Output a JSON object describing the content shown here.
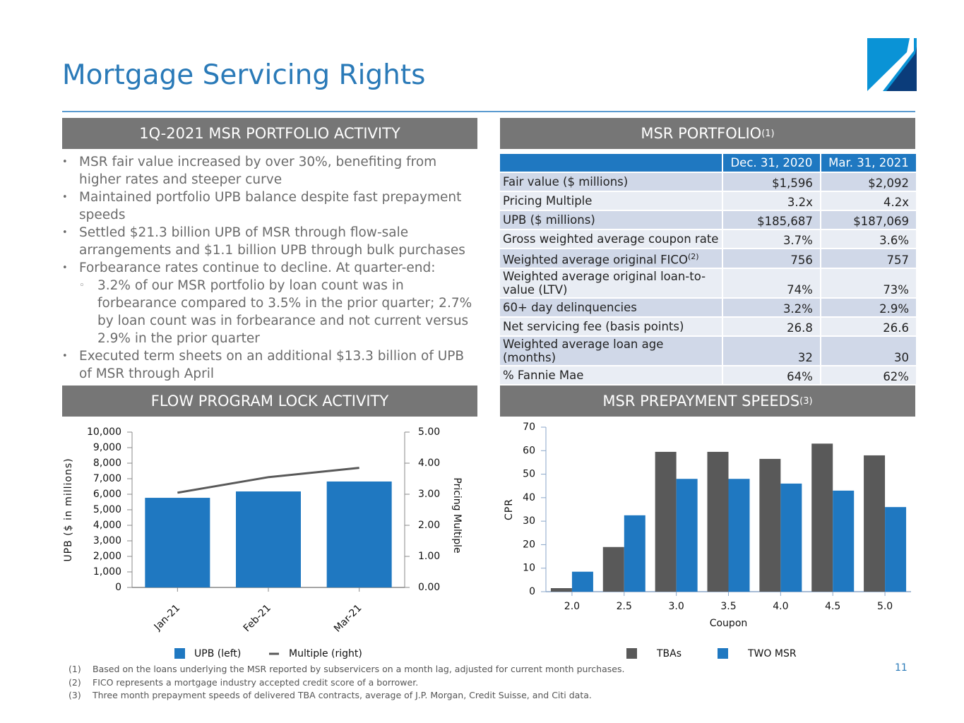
{
  "title": "Mortgage Servicing Rights",
  "page_number": "11",
  "activity": {
    "heading": "1Q-2021 MSR PORTFOLIO ACTIVITY",
    "bullets": [
      {
        "text": "MSR fair value increased by over 30%, benefiting from higher rates and steeper curve"
      },
      {
        "text": "Maintained portfolio UPB balance despite fast prepayment speeds"
      },
      {
        "text": "Settled $21.3 billion UPB of MSR through flow-sale arrangements and $1.1 billion UPB through bulk purchases"
      },
      {
        "text": "Forbearance rates continue to decline. At quarter-end:",
        "sub": [
          "3.2% of our MSR portfolio by loan count was in forbearance compared to 3.5% in the prior quarter; 2.7% by loan count was in forbearance and not current versus 2.9% in the prior quarter"
        ]
      },
      {
        "text": "Executed term sheets on an additional $13.3 billion of UPB of MSR through April"
      }
    ]
  },
  "portfolio": {
    "heading": "MSR PORTFOLIO",
    "heading_note": "(1)",
    "columns": [
      "Dec. 31, 2020",
      "Mar. 31, 2021"
    ],
    "rows": [
      {
        "label": "Fair value ($ millions)",
        "values": [
          "$1,596",
          "$2,092"
        ]
      },
      {
        "label": "Pricing Multiple",
        "values": [
          "3.2x",
          "4.2x"
        ]
      },
      {
        "label": "UPB ($ millions)",
        "values": [
          "$185,687",
          "$187,069"
        ]
      },
      {
        "label": "Gross weighted average coupon rate",
        "values": [
          "3.7%",
          "3.6%"
        ]
      },
      {
        "label": "Weighted average original FICO",
        "note": "(2)",
        "values": [
          "756",
          "757"
        ]
      },
      {
        "label": "Weighted average original loan-to-value (LTV)",
        "values": [
          "74%",
          "73%"
        ]
      },
      {
        "label": "60+ day delinquencies",
        "values": [
          "3.2%",
          "2.9%"
        ]
      },
      {
        "label": "Net servicing fee (basis points)",
        "values": [
          "26.8",
          "26.6"
        ]
      },
      {
        "label": "Weighted average loan age (months)",
        "values": [
          "32",
          "30"
        ]
      },
      {
        "label": "% Fannie Mae",
        "values": [
          "64%",
          "62%"
        ]
      }
    ]
  },
  "chart_data": [
    {
      "type": "bar",
      "title": "FLOW PROGRAM LOCK ACTIVITY",
      "categories": [
        "Jan-21",
        "Feb-21",
        "Mar-21"
      ],
      "y_label": "UPB ($ in millions)",
      "y2_label": "Pricing Multiple",
      "series": [
        {
          "name": "UPB (left)",
          "color": "#1f78c1",
          "values": [
            5770,
            6180,
            6820
          ]
        },
        {
          "name": "Multiple (right)",
          "color": "#595959",
          "type": "line",
          "axis": "y2",
          "values": [
            3.05,
            3.55,
            3.85
          ]
        }
      ],
      "ylim": [
        0,
        10000
      ],
      "yticks": [
        0,
        {
          "value": 1000,
          "label": "1,000"
        },
        {
          "value": 2000,
          "label": "2,000"
        },
        {
          "value": 3000,
          "label": "3,000"
        },
        {
          "value": 4000,
          "label": "4,000"
        },
        {
          "value": 5000,
          "label": "5,000"
        },
        {
          "value": 6000,
          "label": "6,000"
        },
        {
          "value": 7000,
          "label": "7,000"
        },
        {
          "value": 8000,
          "label": "8,000"
        },
        {
          "value": 9000,
          "label": "9,000"
        },
        {
          "value": 10000,
          "label": "10,000"
        }
      ],
      "y2lim": [
        0,
        5
      ],
      "y2ticks": [
        {
          "value": 0,
          "label": "0.00"
        },
        {
          "value": 1,
          "label": "1.00"
        },
        {
          "value": 2,
          "label": "2.00"
        },
        {
          "value": 3,
          "label": "3.00"
        },
        {
          "value": 4,
          "label": "4.00"
        },
        {
          "value": 5,
          "label": "5.00"
        }
      ],
      "grid": false
    },
    {
      "type": "bar",
      "title": "MSR PREPAYMENT SPEEDS",
      "title_note": "(3)",
      "categories": [
        "2.0",
        "2.5",
        "3.0",
        "3.5",
        "4.0",
        "4.5",
        "5.0"
      ],
      "x_label": "Coupon",
      "y_label": "CPR",
      "series": [
        {
          "name": "TBAs",
          "color": "#595959",
          "values": [
            1.5,
            19,
            59.5,
            59.5,
            56.5,
            63,
            58
          ]
        },
        {
          "name": "TWO MSR",
          "color": "#1f78c1",
          "values": [
            8.5,
            32.5,
            48,
            48,
            46,
            43,
            36
          ]
        }
      ],
      "ylim": [
        0,
        70
      ],
      "yticks": [
        0,
        10,
        20,
        30,
        40,
        50,
        60,
        70
      ],
      "grid": false
    }
  ],
  "footnotes": [
    {
      "number": "(1)",
      "text": "Based on the loans underlying the MSR reported by subservicers on a month lag, adjusted for current month purchases."
    },
    {
      "number": "(2)",
      "text": "FICO represents a mortgage industry accepted credit score of a borrower."
    },
    {
      "number": "(3)",
      "text": "Three month prepayment speeds of delivered TBA contracts, average of J.P. Morgan, Credit Suisse, and Citi data."
    }
  ]
}
